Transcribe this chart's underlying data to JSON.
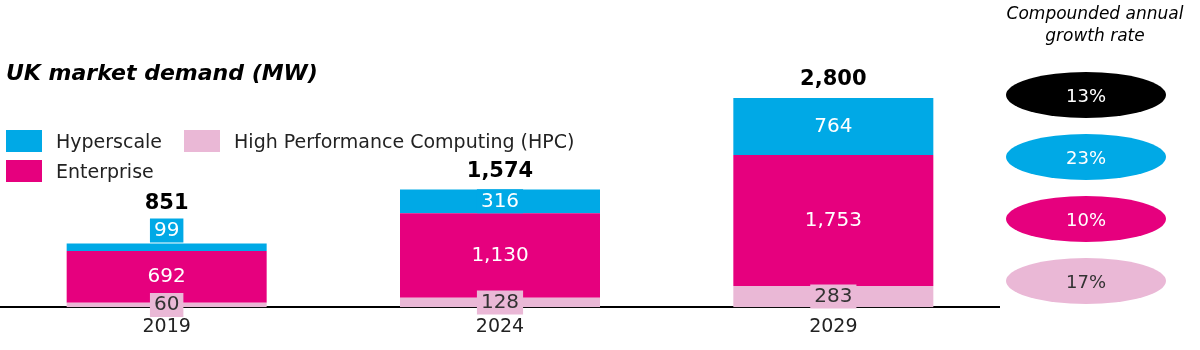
{
  "chart_data": {
    "type": "bar",
    "title": "UK market demand (MW)",
    "categories": [
      "2019",
      "2024",
      "2029"
    ],
    "stacked": true,
    "legend": "top left",
    "grid": false,
    "series": [
      {
        "name": "High Performance Computing (HPC)",
        "color": "#eab8d6",
        "values": [
          60,
          128,
          283
        ],
        "value_labels": [
          "60",
          "128",
          "283"
        ]
      },
      {
        "name": "Enterprise",
        "color": "#e6007e",
        "values": [
          692,
          1130,
          1753
        ],
        "value_labels": [
          "692",
          "1,130",
          "1,753"
        ]
      },
      {
        "name": "Hyperscale",
        "color": "#00a9e6",
        "values": [
          99,
          316,
          764
        ],
        "value_labels": [
          "99",
          "316",
          "764"
        ]
      }
    ],
    "totals": [
      "851",
      "1,574",
      "2,800"
    ],
    "annotations": [
      "Compounded annual growth rate",
      "13%",
      "23%",
      "10%",
      "17%"
    ]
  }
}
